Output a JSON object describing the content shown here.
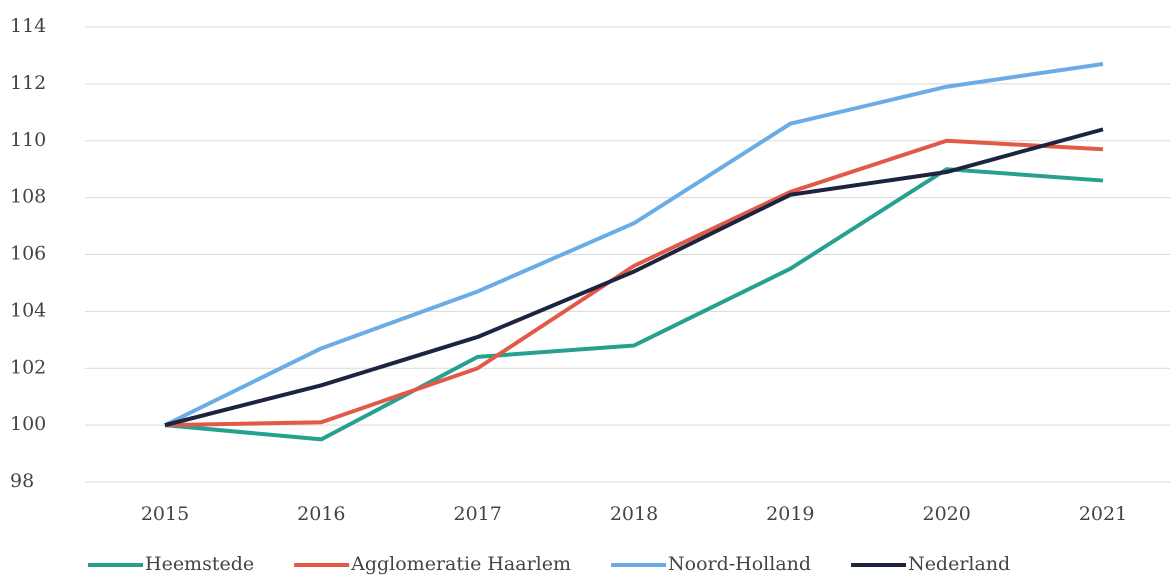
{
  "chart_data": {
    "type": "line",
    "categories": [
      "2015",
      "2016",
      "2017",
      "2018",
      "2019",
      "2020",
      "2021"
    ],
    "series": [
      {
        "name": "Heemstede",
        "color": "#26a08f",
        "values": [
          100,
          99.5,
          102.4,
          102.8,
          105.5,
          109.0,
          108.6
        ]
      },
      {
        "name": "Agglomeratie Haarlem",
        "color": "#e05a47",
        "values": [
          100,
          100.1,
          102.0,
          105.6,
          108.2,
          110.0,
          109.7
        ]
      },
      {
        "name": "Noord-Holland",
        "color": "#6aace6",
        "values": [
          100,
          102.7,
          104.7,
          107.1,
          110.6,
          111.9,
          112.7
        ]
      },
      {
        "name": "Nederland",
        "color": "#1c2440",
        "values": [
          100,
          101.4,
          103.1,
          105.4,
          108.1,
          108.9,
          110.4
        ]
      }
    ],
    "ylim": [
      98,
      114
    ],
    "yticks": [
      98,
      100,
      102,
      104,
      106,
      108,
      110,
      112,
      114
    ],
    "grid": true,
    "legend": "bottom"
  }
}
